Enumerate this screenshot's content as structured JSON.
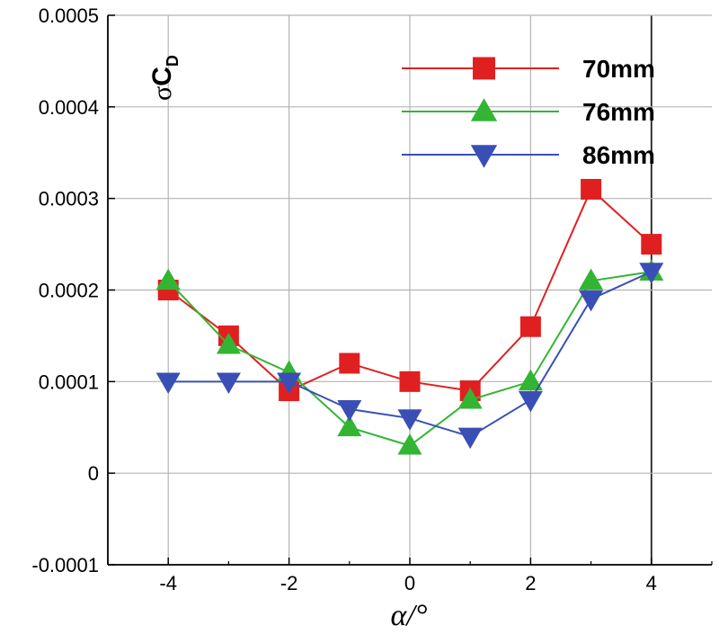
{
  "chart_data": {
    "type": "line",
    "title": "",
    "xlabel": "α/°",
    "ylabel_sigma": "σ",
    "ylabel_main": "C",
    "ylabel_sub": "D",
    "xlim": [
      -5,
      5
    ],
    "ylim": [
      -0.0001,
      0.0005
    ],
    "xticks": [
      -4,
      -2,
      0,
      2,
      4
    ],
    "xtick_labels": [
      "-4",
      "-2",
      "0",
      "2",
      "4"
    ],
    "yticks": [
      -0.0001,
      0,
      0.0001,
      0.0002,
      0.0003,
      0.0004,
      0.0005
    ],
    "ytick_labels": [
      "-0.0001",
      "0",
      "0.0001",
      "0.0002",
      "0.0003",
      "0.0004",
      "0.0005"
    ],
    "grid": true,
    "legend_position": "top-right",
    "x": [
      -4,
      -3,
      -2,
      -1,
      0,
      1,
      2,
      3,
      4
    ],
    "series": [
      {
        "name": "70mm",
        "color": "#e02020",
        "marker": "square",
        "values": [
          0.0002,
          0.00015,
          9e-05,
          0.00012,
          0.0001,
          9e-05,
          0.00016,
          0.00031,
          0.00025
        ]
      },
      {
        "name": "76mm",
        "color": "#33b533",
        "marker": "triangle-up",
        "values": [
          0.00021,
          0.00014,
          0.00011,
          5e-05,
          3e-05,
          8e-05,
          0.0001,
          0.00021,
          0.00022
        ]
      },
      {
        "name": "86mm",
        "color": "#3a4fb5",
        "marker": "triangle-down",
        "values": [
          0.0001,
          0.0001,
          0.0001,
          7e-05,
          6e-05,
          4e-05,
          8e-05,
          0.00019,
          0.00022
        ]
      }
    ]
  }
}
